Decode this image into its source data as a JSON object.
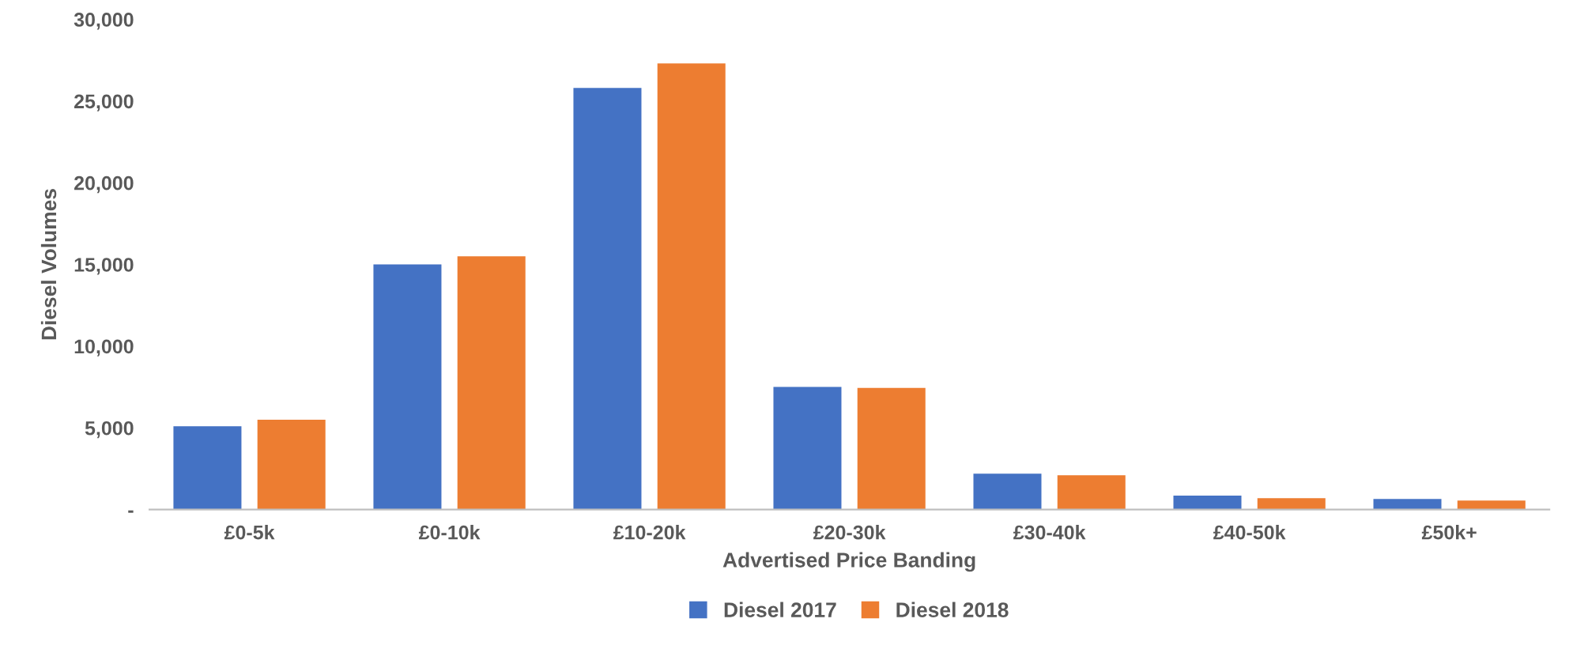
{
  "chart_data": {
    "type": "bar",
    "xlabel": "Advertised Price Banding",
    "ylabel": "Diesel Volumes",
    "categories": [
      "£0-5k",
      "£0-10k",
      "£10-20k",
      "£20-30k",
      "£30-40k",
      "£40-50k",
      "£50k+"
    ],
    "series": [
      {
        "name": "Diesel 2017",
        "color": "#4472c4",
        "values": [
          5100,
          15000,
          25800,
          7500,
          2200,
          850,
          650
        ]
      },
      {
        "name": "Diesel 2018",
        "color": "#ed7d31",
        "values": [
          5500,
          15500,
          27300,
          7450,
          2100,
          700,
          550
        ]
      }
    ],
    "ylim": [
      0,
      30000
    ],
    "yticks": [
      {
        "value": 0,
        "label": "-"
      },
      {
        "value": 5000,
        "label": "5,000"
      },
      {
        "value": 10000,
        "label": "10,000"
      },
      {
        "value": 15000,
        "label": "15,000"
      },
      {
        "value": 20000,
        "label": "20,000"
      },
      {
        "value": 25000,
        "label": "25,000"
      },
      {
        "value": 30000,
        "label": "30,000"
      }
    ],
    "grid": false,
    "legend": "bottom"
  }
}
